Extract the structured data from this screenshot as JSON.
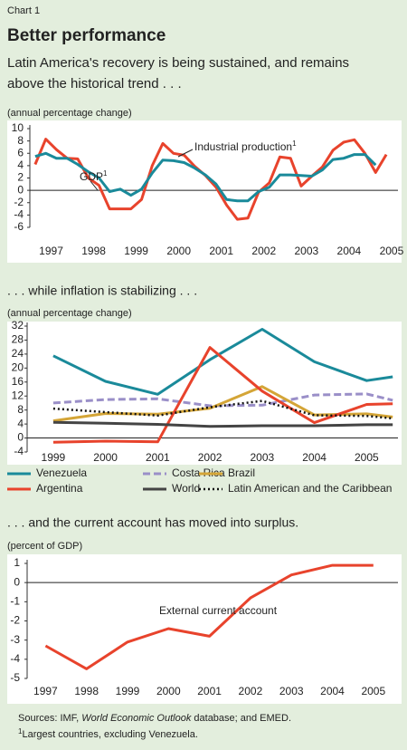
{
  "header": {
    "label": "Chart 1",
    "title": "Better performance",
    "subtitle_lines": [
      "Latin America's recovery is being sustained, and remains",
      "above the historical trend . . ."
    ]
  },
  "chart_data": [
    {
      "type": "line",
      "y_label": "(annual percentage change)",
      "x": [
        1997.125,
        1997.375,
        1997.625,
        1997.875,
        1998.125,
        1998.375,
        1998.625,
        1998.875,
        1999.125,
        1999.375,
        1999.625,
        1999.875,
        2000.125,
        2000.375,
        2000.625,
        2000.875,
        2001.125,
        2001.375,
        2001.625,
        2001.875,
        2002.125,
        2002.375,
        2002.625,
        2002.875,
        2003.125,
        2003.375,
        2003.625,
        2003.875,
        2004.125,
        2004.375,
        2004.625,
        2004.875,
        2005.125,
        2005.375
      ],
      "xlim": [
        1997,
        2005.65
      ],
      "xticks": [
        {
          "value": 1997.5,
          "label": "1997"
        },
        {
          "value": 1998.5,
          "label": "1998"
        },
        {
          "value": 1999.5,
          "label": "1999"
        },
        {
          "value": 2000.5,
          "label": "2000"
        },
        {
          "value": 2001.5,
          "label": "2001"
        },
        {
          "value": 2002.5,
          "label": "2002"
        },
        {
          "value": 2003.5,
          "label": "2003"
        },
        {
          "value": 2004.5,
          "label": "2004"
        },
        {
          "value": 2005.5,
          "label": "2005"
        }
      ],
      "ylim": [
        -6,
        10
      ],
      "yticks": [
        10,
        8,
        6,
        4,
        2,
        0,
        -2,
        -4,
        -6
      ],
      "zero_line": true,
      "series": [
        {
          "name": "Industrial production",
          "note_mark": "1",
          "color": "#e8432c",
          "width": 3,
          "values": [
            4.2,
            8.3,
            6.6,
            5.2,
            5.1,
            2.0,
            0.8,
            -3.0,
            -3.0,
            -3.0,
            -1.5,
            4.0,
            7.6,
            6.0,
            5.7,
            3.9,
            2.4,
            0.5,
            -2.4,
            -4.7,
            -4.5,
            -0.3,
            1.2,
            5.4,
            5.2,
            0.7,
            2.3,
            3.8,
            6.5,
            7.8,
            8.2,
            6.0,
            2.9,
            5.8
          ]
        },
        {
          "name": "GDP",
          "note_mark": "1",
          "color": "#1a8a9a",
          "width": 3,
          "values": [
            5.5,
            6.0,
            5.2,
            5.2,
            4.2,
            3.0,
            2.0,
            -0.2,
            0.2,
            -0.8,
            0.2,
            2.8,
            4.9,
            4.8,
            4.5,
            3.6,
            2.5,
            1.0,
            -1.5,
            -1.7,
            -1.7,
            -0.2,
            0.5,
            2.5,
            2.5,
            2.4,
            2.3,
            3.3,
            5.0,
            5.2,
            5.8,
            5.8,
            4.1,
            null
          ]
        }
      ]
    },
    {
      "type": "line",
      "title": ". . . while inflation is stabilizing . . .",
      "y_label": "(annual percentage change)",
      "x": [
        1999,
        2000,
        2001,
        2002,
        2003,
        2004,
        2005,
        2005.5
      ],
      "xlim": [
        1998.5,
        2005.6
      ],
      "xticks": [
        1999,
        2000,
        2001,
        2002,
        2003,
        2004,
        2005
      ],
      "ylim": [
        -4,
        32
      ],
      "yticks": [
        32,
        28,
        24,
        20,
        16,
        12,
        8,
        4,
        0,
        -4
      ],
      "zero_line": true,
      "legend": "below",
      "series": [
        {
          "name": "Venezuela",
          "color": "#1a8a9a",
          "width": 3,
          "style": "solid",
          "values": [
            23.5,
            16.2,
            12.5,
            22.4,
            31.1,
            21.8,
            16.4,
            17.5
          ]
        },
        {
          "name": "Costa Rica",
          "color": "#9a8fc8",
          "width": 3,
          "style": "dashed",
          "values": [
            10.0,
            11.0,
            11.2,
            9.2,
            9.4,
            12.3,
            12.6,
            10.8
          ]
        },
        {
          "name": "Brazil",
          "color": "#d4a537",
          "width": 3,
          "style": "solid",
          "values": [
            4.9,
            7.0,
            6.8,
            8.5,
            14.7,
            6.6,
            6.9,
            6.0
          ]
        },
        {
          "name": "Argentina",
          "color": "#e8432c",
          "width": 3,
          "style": "solid",
          "values": [
            -1.2,
            -0.9,
            -1.1,
            25.9,
            13.4,
            4.4,
            9.6,
            9.8
          ]
        },
        {
          "name": "World",
          "color": "#444444",
          "width": 3,
          "style": "solid",
          "values": [
            4.5,
            4.2,
            3.9,
            3.3,
            3.5,
            3.5,
            3.8,
            3.8
          ]
        },
        {
          "name": "Latin American and the Caribbean",
          "color": "#111111",
          "width": 2.5,
          "style": "dotted",
          "values": [
            8.4,
            7.4,
            6.4,
            8.8,
            10.6,
            6.5,
            6.3,
            5.6
          ]
        }
      ]
    },
    {
      "type": "line",
      "title": ". . . and the current account has moved into surplus.",
      "y_label": "(percent of GDP)",
      "x": [
        1997,
        1998,
        1999,
        2000,
        2001,
        2002,
        2003,
        2004,
        2005
      ],
      "xlim": [
        1996.55,
        2005.6
      ],
      "xticks": [
        1997,
        1998,
        1999,
        2000,
        2001,
        2002,
        2003,
        2004,
        2005
      ],
      "ylim": [
        -5,
        1
      ],
      "yticks": [
        1,
        0,
        -1,
        -2,
        -3,
        -4,
        -5
      ],
      "zero_line": true,
      "series": [
        {
          "name": "External current account",
          "color": "#e8432c",
          "width": 3,
          "values": [
            -3.3,
            -4.5,
            -3.1,
            -2.4,
            -2.8,
            -0.8,
            0.4,
            0.9,
            0.9
          ]
        }
      ]
    }
  ],
  "footer": {
    "sources_before": "Sources: IMF, ",
    "sources_italic": "World Economic Outlook",
    "sources_after": " database; and EMED.",
    "note_mark": "1",
    "note": "Largest countries, excluding Venezuela."
  }
}
